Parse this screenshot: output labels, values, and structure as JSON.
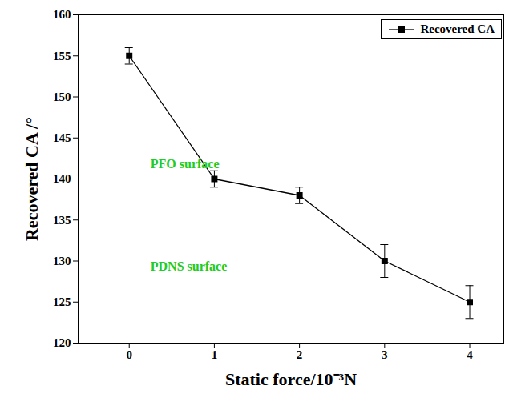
{
  "chart_data": {
    "type": "line",
    "x_label": "Static force/10⁻³N",
    "y_label": "Recovered CA /°",
    "x": [
      0,
      1,
      2,
      3,
      4
    ],
    "series": [
      {
        "name": "Recovered CA",
        "color": "#000000",
        "marker": "square",
        "line_style": "solid",
        "values": [
          155,
          140,
          138,
          130,
          125
        ],
        "error": [
          1,
          1,
          1,
          2,
          2
        ]
      }
    ],
    "xlim": [
      -0.6,
      4.4
    ],
    "xticks": [
      0,
      1,
      2,
      3,
      4
    ],
    "ylim": [
      120,
      160
    ],
    "yticks": [
      120,
      125,
      130,
      135,
      140,
      145,
      150,
      155,
      160
    ],
    "legend": "upper right",
    "annotations": [
      {
        "text": "PFO surface",
        "x": 0.25,
        "y": 141.8,
        "color": "#22cc22"
      },
      {
        "text": "PDNS surface",
        "x": 0.25,
        "y": 129.3,
        "color": "#22cc22"
      }
    ]
  }
}
